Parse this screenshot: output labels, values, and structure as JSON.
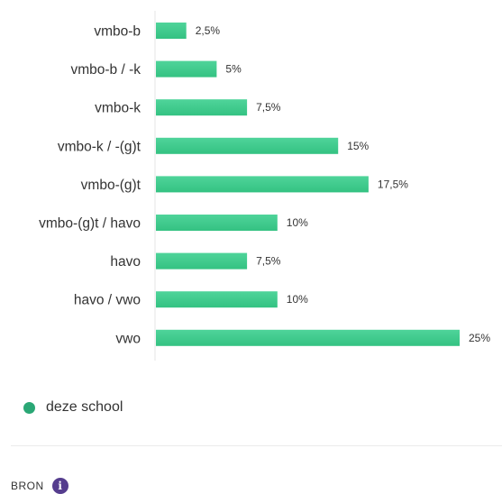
{
  "chart_data": {
    "type": "bar",
    "orientation": "horizontal",
    "categories": [
      "vmbo-b",
      "vmbo-b / -k",
      "vmbo-k",
      "vmbo-k / -(g)t",
      "vmbo-(g)t",
      "vmbo-(g)t / havo",
      "havo",
      "havo / vwo",
      "vwo"
    ],
    "series": [
      {
        "name": "deze school",
        "values": [
          2.5,
          5,
          7.5,
          15,
          17.5,
          10,
          7.5,
          10,
          25
        ],
        "value_labels": [
          "2,5%",
          "5%",
          "7,5%",
          "15%",
          "17,5%",
          "10%",
          "7,5%",
          "10%",
          "25%"
        ]
      }
    ],
    "xlim": [
      0,
      25
    ],
    "grid": false,
    "legend_placement": "bottom-left"
  },
  "colors": {
    "bar_top": "#4fd49a",
    "bar_bottom": "#34c282",
    "legend_dot": "#2aa775",
    "info_icon": "#553d8e"
  },
  "legend": {
    "label": "deze school"
  },
  "source": {
    "label": "BRON",
    "icon": "info-icon",
    "icon_glyph": "i"
  }
}
